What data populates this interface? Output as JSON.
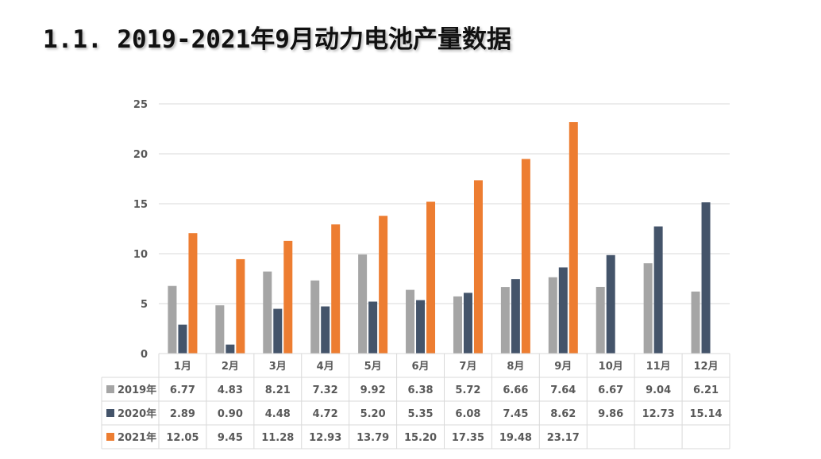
{
  "title": "1.1.  2019-2021年9月动力电池产量数据",
  "chart_data": {
    "type": "bar",
    "categories": [
      "1月",
      "2月",
      "3月",
      "4月",
      "5月",
      "6月",
      "7月",
      "8月",
      "9月",
      "10月",
      "11月",
      "12月"
    ],
    "series": [
      {
        "name": "2019年",
        "color": "#a5a5a5",
        "values": [
          6.77,
          4.83,
          8.21,
          7.32,
          9.92,
          6.38,
          5.72,
          6.66,
          7.64,
          6.67,
          9.04,
          6.21
        ],
        "labels": [
          "6.77",
          "4.83",
          "8.21",
          "7.32",
          "9.92",
          "6.38",
          "5.72",
          "6.66",
          "7.64",
          "6.67",
          "9.04",
          "6.21"
        ]
      },
      {
        "name": "2020年",
        "color": "#44546a",
        "values": [
          2.89,
          0.9,
          4.48,
          4.72,
          5.2,
          5.35,
          6.08,
          7.45,
          8.62,
          9.86,
          12.73,
          15.14
        ],
        "labels": [
          "2.89",
          "0.90",
          "4.48",
          "4.72",
          "5.20",
          "5.35",
          "6.08",
          "7.45",
          "8.62",
          "9.86",
          "12.73",
          "15.14"
        ]
      },
      {
        "name": "2021年",
        "color": "#ed7d31",
        "values": [
          12.05,
          9.45,
          11.28,
          12.93,
          13.79,
          15.2,
          17.35,
          19.48,
          23.17,
          null,
          null,
          null
        ],
        "labels": [
          "12.05",
          "9.45",
          "11.28",
          "12.93",
          "13.79",
          "15.20",
          "17.35",
          "19.48",
          "23.17",
          "",
          "",
          ""
        ]
      }
    ],
    "yticks": [
      "0",
      "5",
      "10",
      "15",
      "20",
      "25"
    ],
    "ylim": [
      0,
      25
    ],
    "grid": true,
    "legend": "data-table"
  }
}
